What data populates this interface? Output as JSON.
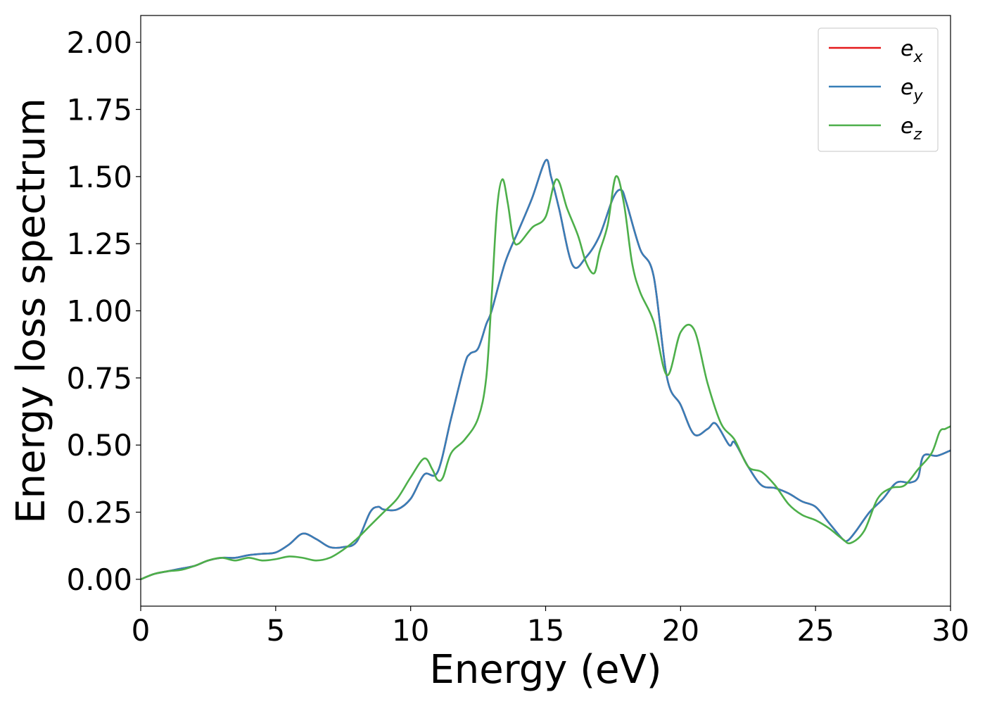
{
  "chart_data": {
    "type": "line",
    "xlabel": "Energy (eV)",
    "ylabel": "Energy loss spectrum",
    "xlim": [
      0,
      30
    ],
    "ylim": [
      -0.1,
      2.1
    ],
    "xticks": [
      0,
      5,
      10,
      15,
      20,
      25,
      30
    ],
    "xtick_labels": [
      "0",
      "5",
      "10",
      "15",
      "20",
      "25",
      "30"
    ],
    "yticks": [
      0,
      0.25,
      0.5,
      0.75,
      1.0,
      1.25,
      1.5,
      1.75,
      2.0
    ],
    "ytick_labels": [
      "0.00",
      "0.25",
      "0.50",
      "0.75",
      "1.00",
      "1.25",
      "1.50",
      "1.75",
      "2.00"
    ],
    "grid": false,
    "legend_position": "top-right",
    "series": [
      {
        "name": "e",
        "subscript": "x",
        "color": "#e41a1c",
        "x": [
          0,
          0.5,
          1,
          1.5,
          2,
          2.5,
          3,
          3.5,
          4,
          4.5,
          5,
          5.5,
          6,
          6.5,
          7,
          7.5,
          8,
          8.5,
          8.8,
          9,
          9.5,
          10,
          10.5,
          11,
          11.5,
          12,
          12.2,
          12.5,
          12.8,
          13,
          13.5,
          14,
          14.5,
          15,
          15.2,
          15.5,
          16,
          16.5,
          17,
          17.5,
          17.8,
          18,
          18.5,
          19,
          19.5,
          20,
          20.5,
          21,
          21.3,
          21.8,
          22,
          22.5,
          23,
          23.5,
          24,
          24.5,
          25,
          25.5,
          26,
          26.2,
          26.5,
          27,
          27.5,
          28,
          28.5,
          28.8,
          29,
          29.5,
          30
        ],
        "y": [
          0,
          0.02,
          0.03,
          0.04,
          0.05,
          0.07,
          0.08,
          0.08,
          0.09,
          0.095,
          0.1,
          0.13,
          0.17,
          0.15,
          0.12,
          0.12,
          0.14,
          0.25,
          0.27,
          0.26,
          0.26,
          0.3,
          0.39,
          0.4,
          0.6,
          0.8,
          0.84,
          0.86,
          0.95,
          1.0,
          1.18,
          1.3,
          1.42,
          1.56,
          1.5,
          1.38,
          1.17,
          1.2,
          1.28,
          1.42,
          1.45,
          1.4,
          1.23,
          1.13,
          0.75,
          0.65,
          0.54,
          0.56,
          0.58,
          0.5,
          0.51,
          0.42,
          0.35,
          0.34,
          0.32,
          0.29,
          0.27,
          0.21,
          0.15,
          0.145,
          0.18,
          0.25,
          0.3,
          0.36,
          0.36,
          0.38,
          0.46,
          0.46,
          0.48
        ]
      },
      {
        "name": "e",
        "subscript": "y",
        "color": "#377eb8",
        "x": [
          0,
          0.5,
          1,
          1.5,
          2,
          2.5,
          3,
          3.5,
          4,
          4.5,
          5,
          5.5,
          6,
          6.5,
          7,
          7.5,
          8,
          8.5,
          8.8,
          9,
          9.5,
          10,
          10.5,
          11,
          11.5,
          12,
          12.2,
          12.5,
          12.8,
          13,
          13.5,
          14,
          14.5,
          15,
          15.2,
          15.5,
          16,
          16.5,
          17,
          17.5,
          17.8,
          18,
          18.5,
          19,
          19.5,
          20,
          20.5,
          21,
          21.3,
          21.8,
          22,
          22.5,
          23,
          23.5,
          24,
          24.5,
          25,
          25.5,
          26,
          26.2,
          26.5,
          27,
          27.5,
          28,
          28.5,
          28.8,
          29,
          29.5,
          30
        ],
        "y": [
          0,
          0.02,
          0.03,
          0.04,
          0.05,
          0.07,
          0.08,
          0.08,
          0.09,
          0.095,
          0.1,
          0.13,
          0.17,
          0.15,
          0.12,
          0.12,
          0.14,
          0.25,
          0.27,
          0.26,
          0.26,
          0.3,
          0.39,
          0.4,
          0.6,
          0.8,
          0.84,
          0.86,
          0.95,
          1.0,
          1.18,
          1.3,
          1.42,
          1.56,
          1.5,
          1.38,
          1.17,
          1.2,
          1.28,
          1.42,
          1.45,
          1.4,
          1.23,
          1.13,
          0.75,
          0.65,
          0.54,
          0.56,
          0.58,
          0.5,
          0.51,
          0.42,
          0.35,
          0.34,
          0.32,
          0.29,
          0.27,
          0.21,
          0.15,
          0.145,
          0.18,
          0.25,
          0.3,
          0.36,
          0.36,
          0.38,
          0.46,
          0.46,
          0.48
        ]
      },
      {
        "name": "e",
        "subscript": "z",
        "color": "#4daf4a",
        "x": [
          0,
          0.5,
          1,
          1.5,
          2,
          2.5,
          3,
          3.5,
          4,
          4.5,
          5,
          5.5,
          6,
          6.5,
          7,
          7.5,
          8,
          8.5,
          9,
          9.5,
          10,
          10.5,
          10.8,
          11,
          11.2,
          11.5,
          12,
          12.5,
          12.8,
          13,
          13.2,
          13.4,
          13.6,
          13.8,
          14,
          14.5,
          15,
          15.4,
          15.8,
          16.2,
          16.5,
          16.8,
          17,
          17.3,
          17.6,
          17.9,
          18.2,
          18.5,
          19,
          19.5,
          20,
          20.5,
          21,
          21.5,
          22,
          22.5,
          23,
          23.5,
          24,
          24.5,
          25,
          25.5,
          26,
          26.3,
          26.8,
          27.3,
          27.8,
          28.3,
          28.8,
          29.3,
          29.6,
          29.8,
          30
        ],
        "y": [
          0,
          0.02,
          0.03,
          0.035,
          0.05,
          0.07,
          0.08,
          0.07,
          0.08,
          0.07,
          0.075,
          0.085,
          0.08,
          0.07,
          0.08,
          0.11,
          0.15,
          0.2,
          0.25,
          0.3,
          0.38,
          0.45,
          0.41,
          0.37,
          0.38,
          0.47,
          0.52,
          0.6,
          0.75,
          1.05,
          1.38,
          1.49,
          1.4,
          1.27,
          1.25,
          1.31,
          1.35,
          1.49,
          1.38,
          1.28,
          1.18,
          1.14,
          1.22,
          1.32,
          1.5,
          1.4,
          1.18,
          1.07,
          0.96,
          0.76,
          0.92,
          0.93,
          0.73,
          0.58,
          0.52,
          0.42,
          0.4,
          0.35,
          0.28,
          0.24,
          0.22,
          0.19,
          0.15,
          0.135,
          0.18,
          0.3,
          0.34,
          0.35,
          0.41,
          0.47,
          0.55,
          0.56,
          0.57
        ]
      }
    ]
  }
}
